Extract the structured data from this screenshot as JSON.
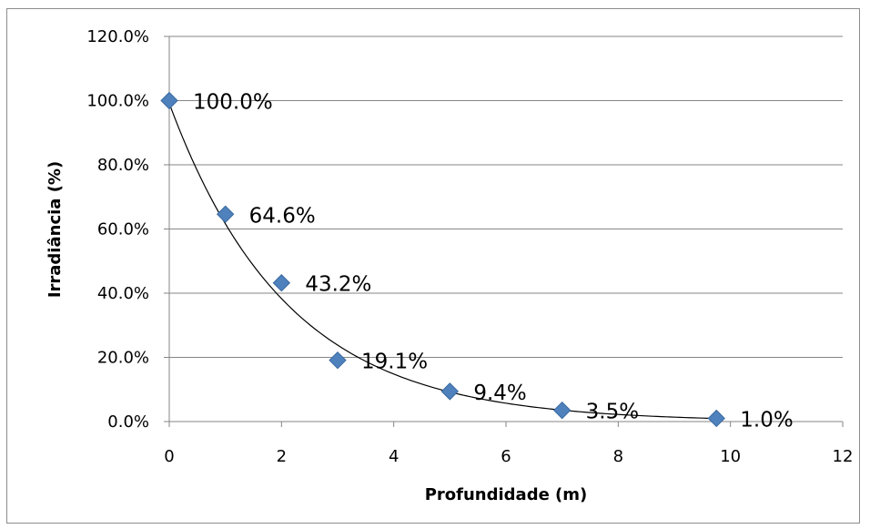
{
  "chart_data": {
    "type": "scatter",
    "title": "",
    "xlabel": "Profundidade (m)",
    "ylabel": "Irradiância (%)",
    "xlim": [
      0,
      12
    ],
    "ylim": [
      0,
      120
    ],
    "x_ticks": [
      "0",
      "2",
      "4",
      "6",
      "8",
      "10",
      "12"
    ],
    "y_ticks": [
      "0.0%",
      "20.0%",
      "40.0%",
      "60.0%",
      "80.0%",
      "100.0%",
      "120.0%"
    ],
    "grid": "horizontal",
    "legend": "none",
    "trendline": "exponential",
    "marker": "diamond",
    "series": [
      {
        "x": [
          0,
          1,
          2,
          3,
          5,
          7,
          9.75
        ],
        "y": [
          100.0,
          64.6,
          43.2,
          19.1,
          9.4,
          3.5,
          1.0
        ],
        "labels": [
          "100.0%",
          "64.6%",
          "43.2%",
          "19.1%",
          "9.4%",
          "3.5%",
          "1.0%"
        ]
      }
    ],
    "colors": {
      "marker": "#4f81bd",
      "marker_stroke": "#3a6a9f",
      "trendline": "#000000",
      "grid": "#868686"
    }
  }
}
